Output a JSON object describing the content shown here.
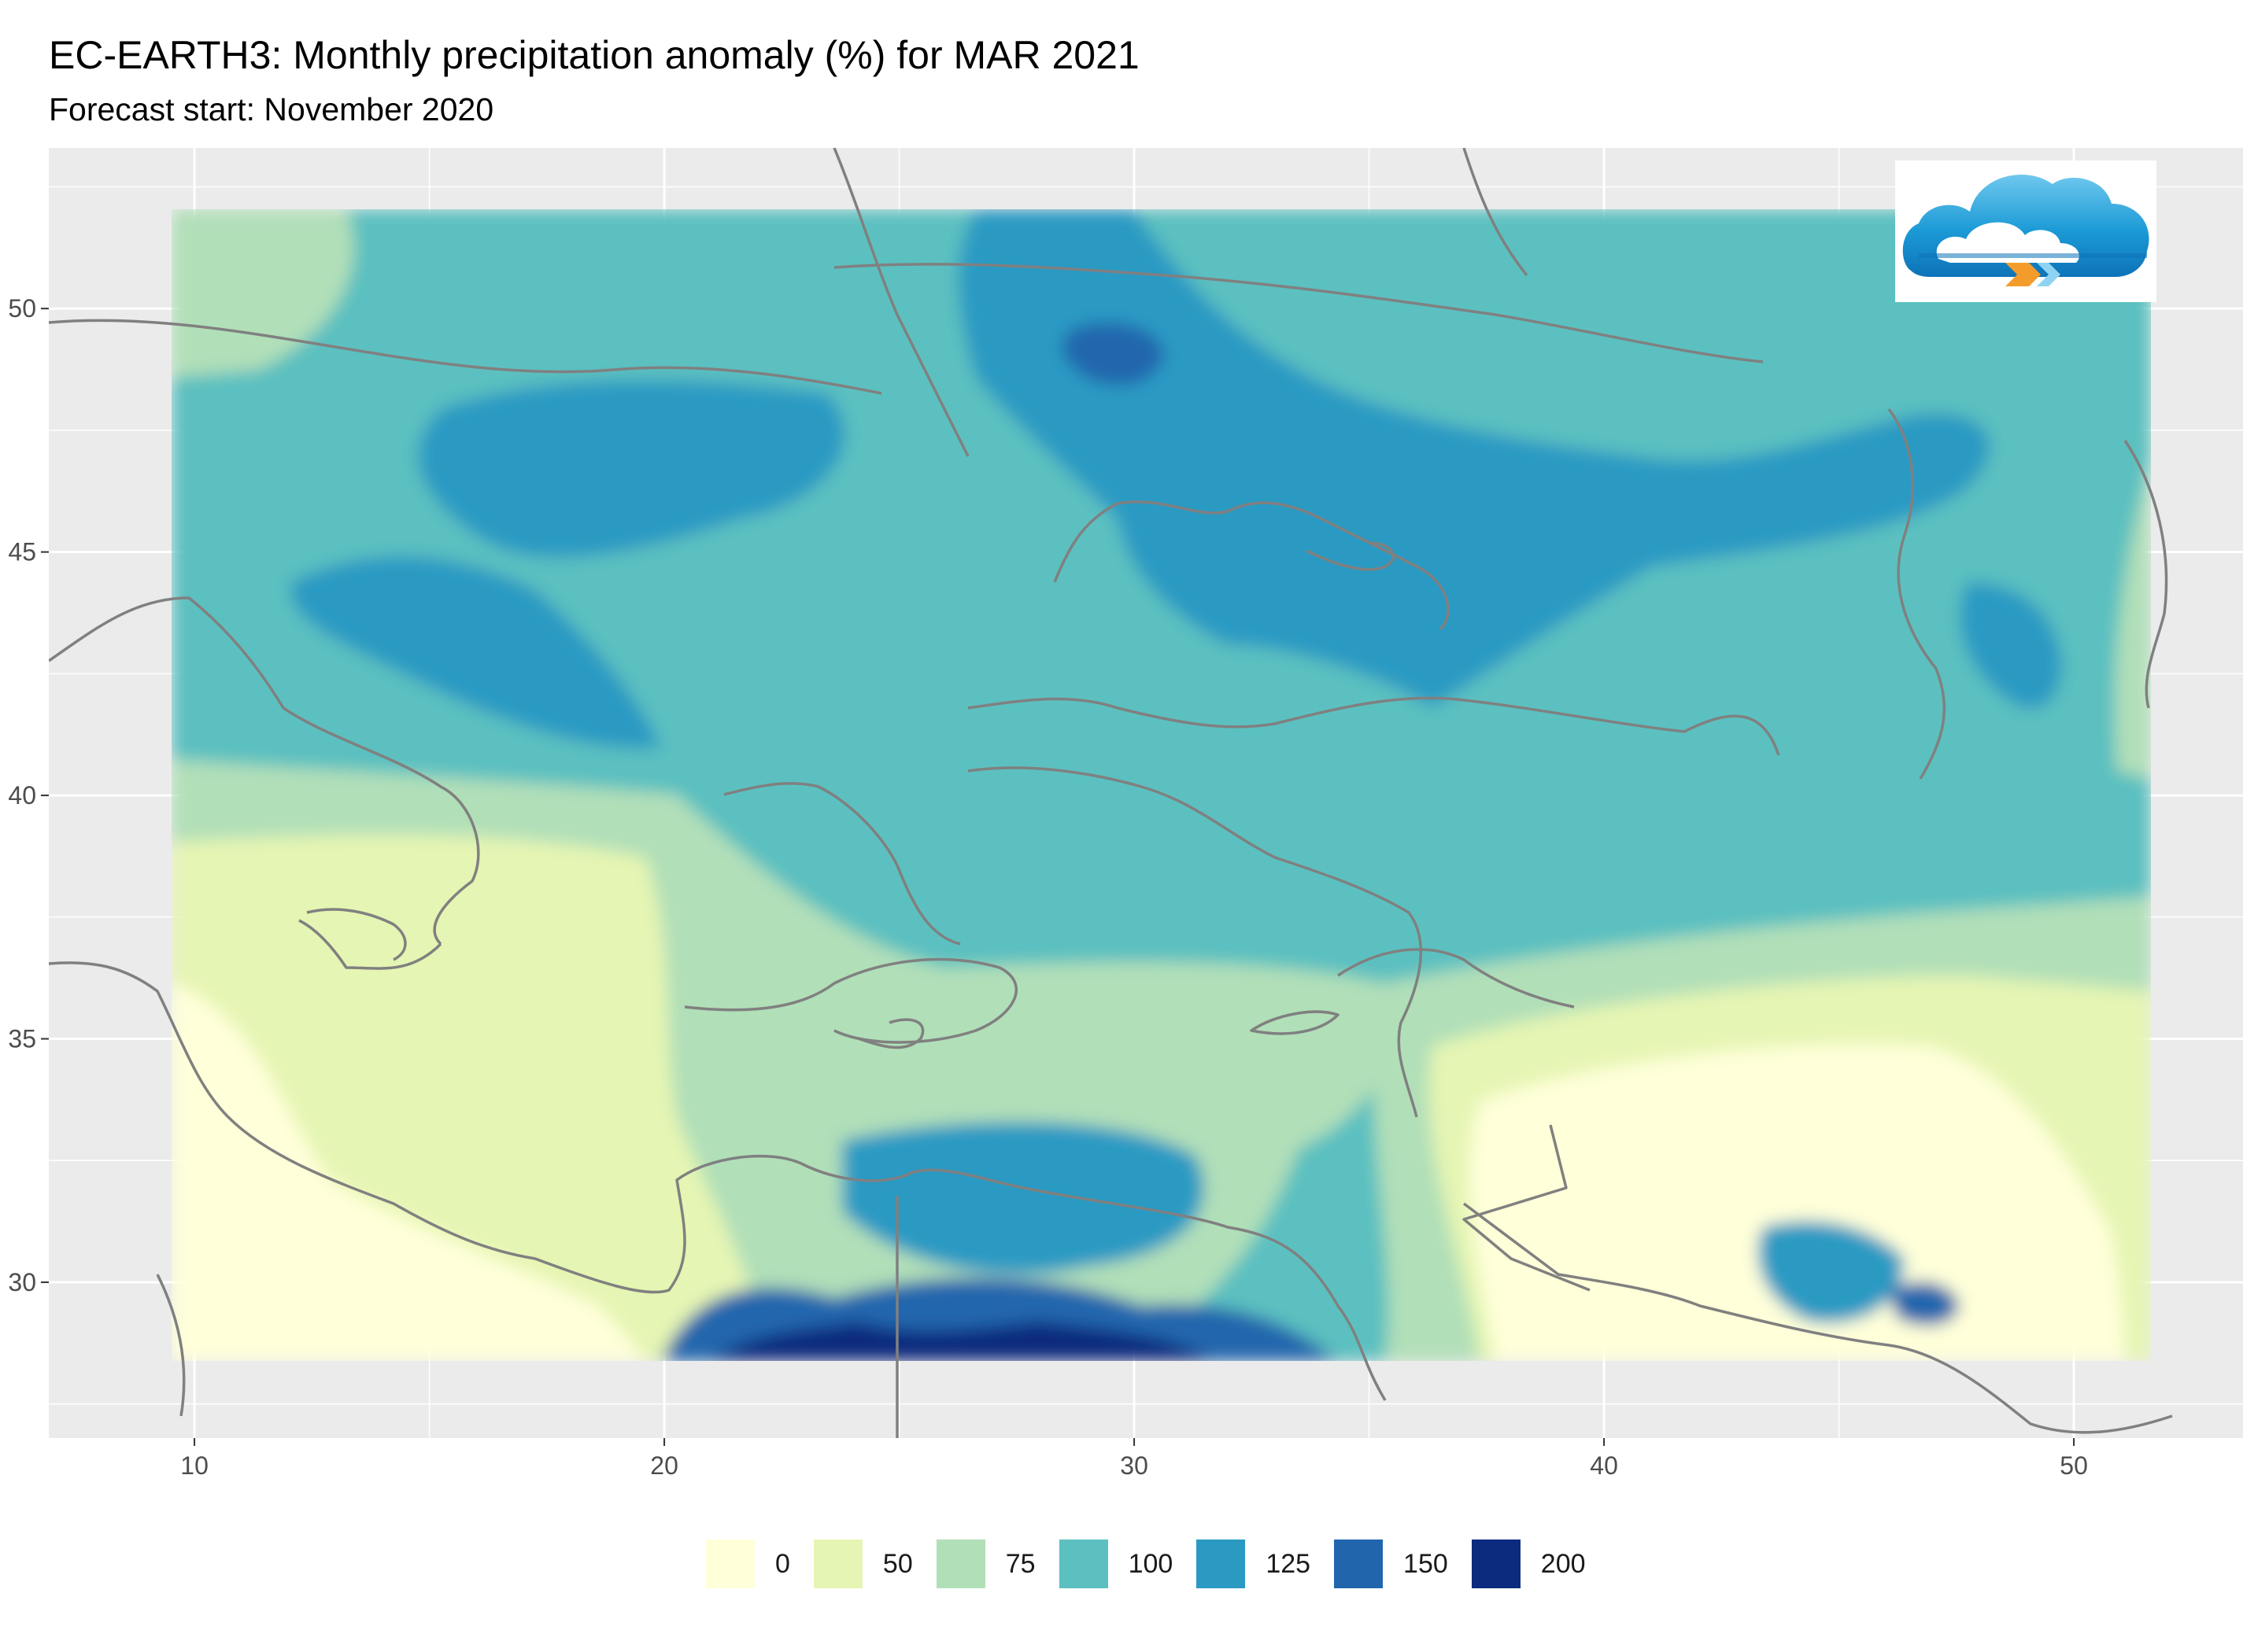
{
  "title": "EC-EARTH3: Monthly precipitation anomaly (%) for MAR 2021",
  "subtitle": "Forecast start: November 2020",
  "map": {
    "x_axis": {
      "ticks": [
        "10",
        "20",
        "30",
        "40",
        "50"
      ],
      "range": [
        6.9,
        53.6
      ]
    },
    "y_axis": {
      "ticks": [
        "30",
        "35",
        "40",
        "45",
        "50"
      ],
      "range": [
        26.8,
        53.3
      ]
    },
    "data_extent": {
      "lon": [
        9.5,
        51.6
      ],
      "lat": [
        28.4,
        52.9
      ]
    },
    "panel_color": "#ebebeb",
    "grid_color": "#ffffff",
    "coastline_color": "#808080"
  },
  "legend": {
    "items": [
      {
        "label": "0",
        "color": "#ffffd9"
      },
      {
        "label": "50",
        "color": "#e5f5b3"
      },
      {
        "label": "75",
        "color": "#b1dfb8"
      },
      {
        "label": "100",
        "color": "#5cc0c0"
      },
      {
        "label": "125",
        "color": "#2b9ac3"
      },
      {
        "label": "150",
        "color": "#2166ad"
      },
      {
        "label": "200",
        "color": "#0c2a7e"
      }
    ]
  },
  "logo_icon": "cloud-forecast-logo-icon"
}
